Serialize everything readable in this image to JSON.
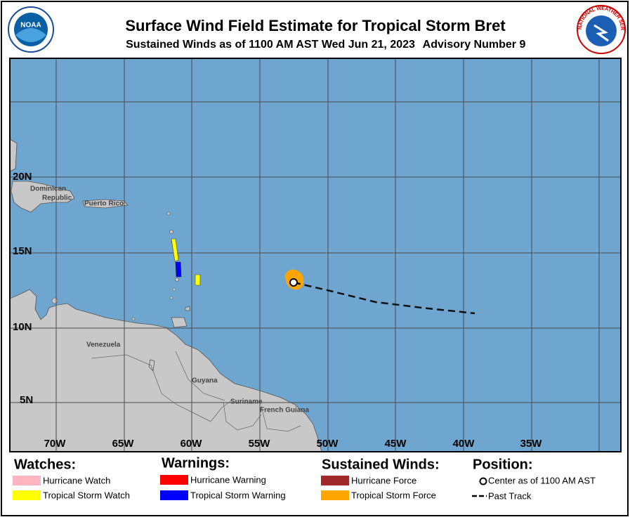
{
  "header": {
    "title": "Surface Wind Field Estimate for Tropical Storm Bret",
    "subtitle": "Sustained Winds as of 1100 AM AST Wed Jun 21, 2023",
    "advisory": "Advisory Number 9"
  },
  "logos": {
    "noaa": "NOAA",
    "nws": "NATIONAL WEATHER SERVICE"
  },
  "map": {
    "lon_labels": [
      "70W",
      "65W",
      "60W",
      "55W",
      "50W",
      "45W",
      "40W",
      "35W"
    ],
    "lat_labels": [
      "20N",
      "15N",
      "10N",
      "5N"
    ],
    "places": [
      "Dominican",
      "Republic",
      "Puerto Rico",
      "Venezuela",
      "Guyana",
      "Suriname",
      "French Guiana"
    ]
  },
  "legend": {
    "watches": {
      "title": "Watches:",
      "items": [
        "Hurricane Watch",
        "Tropical Storm Watch"
      ]
    },
    "warnings": {
      "title": "Warnings:",
      "items": [
        "Hurricane Warning",
        "Tropical Storm Warning"
      ]
    },
    "winds": {
      "title": "Sustained Winds:",
      "items": [
        "Hurricane Force",
        "Tropical Storm Force"
      ]
    },
    "position": {
      "title": "Position:",
      "items": [
        "Center as of 1100 AM AST",
        "Past Track"
      ]
    }
  }
}
